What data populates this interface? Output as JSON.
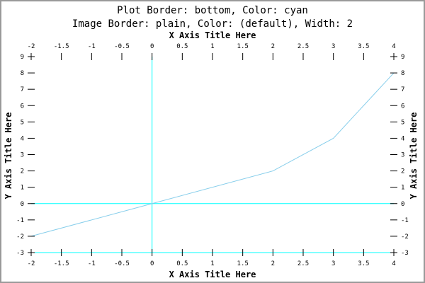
{
  "chart_data": {
    "type": "line",
    "title": "Plot Border: bottom, Color: cyan",
    "subtitle": "Image Border: plain, Color: (default), Width: 2",
    "xlabel_top": "X Axis Title Here",
    "xlabel_bottom": "X Axis Title Here",
    "ylabel_left": "Y Axis Title Here",
    "ylabel_right": "Y Axis Title Here",
    "xlim": [
      -2,
      4
    ],
    "ylim": [
      -3,
      9
    ],
    "x_ticks": [
      -2,
      -1.5,
      -1,
      -0.5,
      0,
      0.5,
      1,
      1.5,
      2,
      2.5,
      3,
      3.5,
      4
    ],
    "x_tick_labels": [
      "-2",
      "-1.5",
      "-1",
      "-0.5",
      "0",
      "0.5",
      "1",
      "1.5",
      "2",
      "2.5",
      "3",
      "3.5",
      "4"
    ],
    "y_ticks": [
      -3,
      -2,
      -1,
      0,
      1,
      2,
      3,
      4,
      5,
      6,
      7,
      8,
      9
    ],
    "y_tick_labels": [
      "-3",
      "-2",
      "-1",
      "0",
      "1",
      "2",
      "3",
      "4",
      "5",
      "6",
      "7",
      "8",
      "9"
    ],
    "series": [
      {
        "x": [
          -2,
          0,
          2,
          3,
          4
        ],
        "y": [
          -2,
          0,
          2,
          4,
          8
        ]
      }
    ],
    "zero_lines": true,
    "plot_border": "bottom",
    "colors": {
      "border": "#00ffff",
      "line": "#87ceeb",
      "zero_lines": "#00ffff",
      "image_border": "#9a9a9a"
    },
    "grid": false
  }
}
